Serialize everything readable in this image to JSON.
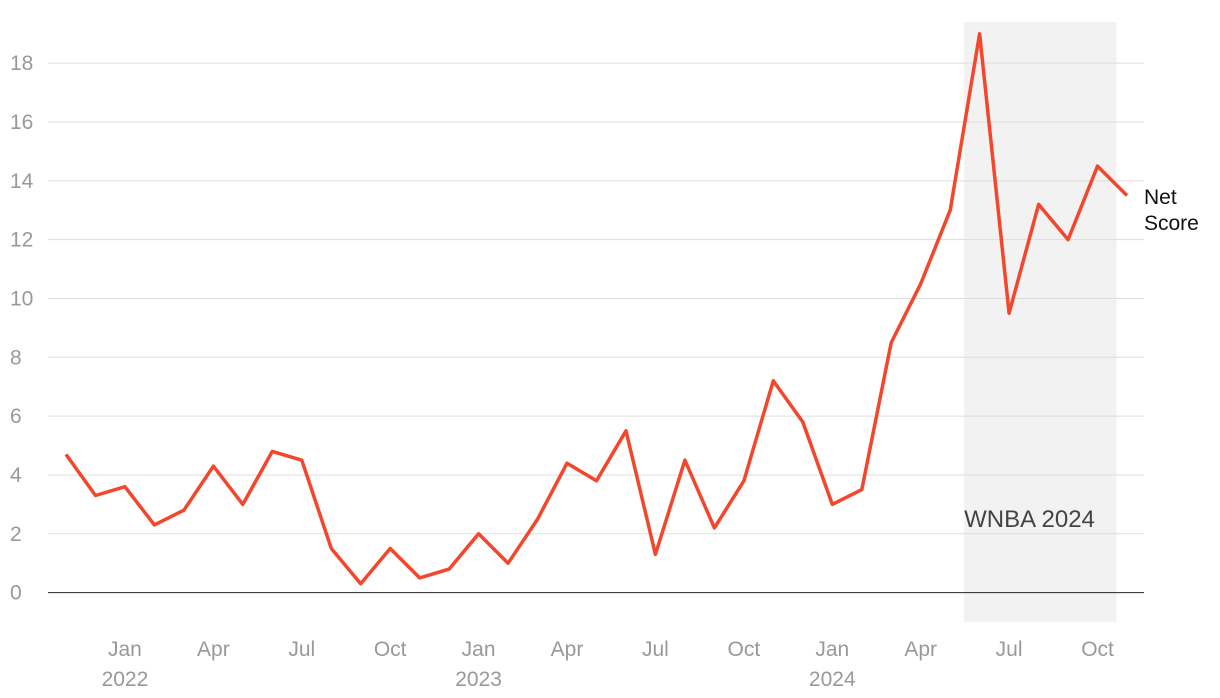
{
  "chart_data": {
    "type": "line",
    "x": [
      "2021-11",
      "2021-12",
      "2022-01",
      "2022-02",
      "2022-03",
      "2022-04",
      "2022-05",
      "2022-06",
      "2022-07",
      "2022-08",
      "2022-09",
      "2022-10",
      "2022-11",
      "2022-12",
      "2023-01",
      "2023-02",
      "2023-03",
      "2023-04",
      "2023-05",
      "2023-06",
      "2023-07",
      "2023-08",
      "2023-09",
      "2023-10",
      "2023-11",
      "2023-12",
      "2024-01",
      "2024-02",
      "2024-03",
      "2024-04",
      "2024-05",
      "2024-06",
      "2024-07",
      "2024-08",
      "2024-09",
      "2024-10",
      "2024-11"
    ],
    "series": [
      {
        "name": "Net Score",
        "color": "#f4462c",
        "values": [
          4.7,
          3.3,
          3.6,
          2.3,
          2.8,
          4.3,
          3.0,
          4.8,
          4.5,
          1.5,
          0.3,
          1.5,
          0.5,
          0.8,
          2.0,
          1.0,
          2.5,
          4.4,
          3.8,
          5.5,
          1.3,
          4.5,
          2.2,
          3.8,
          7.2,
          5.8,
          3.0,
          3.5,
          8.5,
          10.5,
          13.0,
          19.0,
          9.5,
          13.2,
          12.0,
          14.5,
          13.5
        ]
      }
    ],
    "xlim": [
      "2021-11",
      "2024-11"
    ],
    "xticks": [
      {
        "value": "2022-01",
        "label": "Jan"
      },
      {
        "value": "2022-04",
        "label": "Apr"
      },
      {
        "value": "2022-07",
        "label": "Jul"
      },
      {
        "value": "2022-10",
        "label": "Oct"
      },
      {
        "value": "2023-01",
        "label": "Jan"
      },
      {
        "value": "2023-04",
        "label": "Apr"
      },
      {
        "value": "2023-07",
        "label": "Jul"
      },
      {
        "value": "2023-10",
        "label": "Oct"
      },
      {
        "value": "2024-01",
        "label": "Jan"
      },
      {
        "value": "2024-04",
        "label": "Apr"
      },
      {
        "value": "2024-07",
        "label": "Jul"
      },
      {
        "value": "2024-10",
        "label": "Oct"
      }
    ],
    "year_labels": [
      {
        "value": "2022-01",
        "label": "2022"
      },
      {
        "value": "2023-01",
        "label": "2023"
      },
      {
        "value": "2024-01",
        "label": "2024"
      }
    ],
    "ylim": [
      -1,
      19.4
    ],
    "yticks": [
      0,
      2,
      4,
      6,
      8,
      10,
      12,
      14,
      16,
      18
    ],
    "grid": true,
    "shade": {
      "start": "2024-05",
      "end": "2024-10",
      "label": "WNBA 2024",
      "color": "#f2f2f2"
    }
  }
}
